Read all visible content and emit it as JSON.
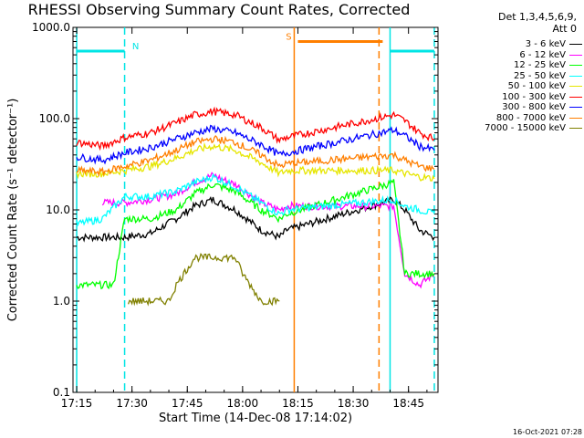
{
  "title": "RHESSI Observing Summary Count Rates, Corrected",
  "legend_header": [
    "Det 1,3,4,5,6,9,",
    "Att 0"
  ],
  "timestamp": "16-Oct-2021 07:28",
  "chart_data": {
    "type": "line",
    "xlabel": "Start Time (14-Dec-08 17:14:02)",
    "ylabel": "Corrected Count Rate (s⁻¹ detector⁻¹)",
    "y_scale": "log",
    "ylim": [
      0.1,
      1000
    ],
    "xlim_minutes": [
      "17:14",
      "18:53"
    ],
    "x_ticks": [
      "17:15",
      "17:30",
      "17:45",
      "18:00",
      "18:15",
      "18:30",
      "18:45"
    ],
    "y_ticks": [
      "0.1",
      "1.0",
      "10.0",
      "100.0",
      "1000.0"
    ],
    "markers": [
      {
        "label": "N",
        "color": "#00e5e5",
        "start": "17:15",
        "end": "17:28"
      },
      {
        "label": "S",
        "color": "#ff7f00",
        "start": "18:15",
        "end": "18:38"
      },
      {
        "label": "",
        "color": "#00e5e5",
        "start": "18:40",
        "end": "18:52"
      }
    ],
    "vlines": [
      {
        "t": "17:15",
        "color": "#00e5e5",
        "style": "solid"
      },
      {
        "t": "17:28",
        "color": "#00e5e5",
        "style": "dashed"
      },
      {
        "t": "18:14",
        "color": "#ff7f00",
        "style": "solid"
      },
      {
        "t": "18:37",
        "color": "#ff7f00",
        "style": "dashed"
      },
      {
        "t": "18:40",
        "color": "#00e5e5",
        "style": "solid"
      },
      {
        "t": "18:52",
        "color": "#00e5e5",
        "style": "dashed"
      }
    ],
    "series": [
      {
        "name": "3 - 6 keV",
        "color": "#000000",
        "x": [
          "17:15",
          "17:22",
          "17:28",
          "17:35",
          "17:42",
          "17:47",
          "17:52",
          "17:58",
          "18:05",
          "18:10",
          "18:12",
          "18:41",
          "18:44",
          "18:48",
          "18:52"
        ],
        "y": [
          5,
          5,
          5,
          5.5,
          8,
          11,
          13,
          10,
          6,
          5,
          6,
          13,
          10,
          6,
          5
        ]
      },
      {
        "name": "6 - 12 keV",
        "color": "#ff00ff",
        "x": [
          "17:22",
          "17:28",
          "17:35",
          "17:42",
          "17:47",
          "17:52",
          "17:58",
          "18:05",
          "18:10",
          "18:12",
          "18:41",
          "18:44",
          "18:48",
          "18:52"
        ],
        "y": [
          12,
          12,
          13,
          15,
          20,
          24,
          19,
          12,
          10,
          11,
          11,
          2,
          1.5,
          2
        ]
      },
      {
        "name": "12 - 25 keV",
        "color": "#00ff00",
        "x": [
          "17:15",
          "17:22",
          "17:25",
          "17:28",
          "17:35",
          "17:42",
          "17:47",
          "17:52",
          "17:58",
          "18:05",
          "18:10",
          "18:12",
          "18:41",
          "18:44",
          "18:48",
          "18:52"
        ],
        "y": [
          1.5,
          1.5,
          1.5,
          8,
          8,
          10,
          15,
          19,
          16,
          10,
          8,
          9,
          20,
          2,
          2,
          2
        ]
      },
      {
        "name": "25 - 50 keV",
        "color": "#00ffff",
        "x": [
          "17:15",
          "17:22",
          "17:28",
          "17:35",
          "17:42",
          "17:47",
          "17:52",
          "17:58",
          "18:05",
          "18:10",
          "18:12",
          "18:41",
          "18:44",
          "18:48",
          "18:52"
        ],
        "y": [
          7,
          8,
          14,
          14,
          16,
          20,
          23,
          18,
          12,
          9,
          10,
          13,
          11,
          10,
          9
        ]
      },
      {
        "name": "50 - 100 keV",
        "color": "#e6e600",
        "x": [
          "17:15",
          "17:22",
          "17:28",
          "17:35",
          "17:42",
          "17:47",
          "17:52",
          "17:58",
          "18:05",
          "18:10",
          "18:12",
          "18:41",
          "18:44",
          "18:48",
          "18:52"
        ],
        "y": [
          25,
          25,
          27,
          30,
          37,
          45,
          50,
          45,
          33,
          25,
          27,
          27,
          25,
          23,
          22
        ]
      },
      {
        "name": "100 - 300 keV",
        "color": "#ff0000",
        "x": [
          "17:15",
          "17:22",
          "17:28",
          "17:35",
          "17:42",
          "17:47",
          "17:52",
          "17:58",
          "18:05",
          "18:10",
          "18:12",
          "18:41",
          "18:44",
          "18:48",
          "18:52"
        ],
        "y": [
          55,
          50,
          62,
          70,
          90,
          110,
          120,
          110,
          80,
          58,
          62,
          110,
          95,
          70,
          60
        ]
      },
      {
        "name": "300 - 800 keV",
        "color": "#0000ff",
        "x": [
          "17:15",
          "17:22",
          "17:28",
          "17:35",
          "17:42",
          "17:47",
          "17:52",
          "17:58",
          "18:05",
          "18:10",
          "18:12",
          "18:41",
          "18:44",
          "18:48",
          "18:52"
        ],
        "y": [
          38,
          35,
          42,
          48,
          60,
          70,
          78,
          70,
          52,
          40,
          42,
          75,
          65,
          50,
          45
        ]
      },
      {
        "name": "800 - 7000 keV",
        "color": "#ff7f00",
        "x": [
          "17:15",
          "17:22",
          "17:28",
          "17:35",
          "17:42",
          "17:47",
          "17:52",
          "17:58",
          "18:05",
          "18:10",
          "18:12",
          "18:41",
          "18:44",
          "18:48",
          "18:52"
        ],
        "y": [
          27,
          26,
          30,
          35,
          45,
          55,
          60,
          55,
          40,
          30,
          32,
          40,
          35,
          30,
          28
        ]
      },
      {
        "name": "7000 - 15000 keV",
        "color": "#808000",
        "x": [
          "17:29",
          "17:35",
          "17:40",
          "17:42",
          "17:47",
          "17:52",
          "17:58",
          "18:00",
          "18:05",
          "18:10"
        ],
        "y": [
          1,
          1,
          1,
          1.5,
          3,
          3,
          3,
          2,
          1,
          1
        ]
      }
    ]
  }
}
